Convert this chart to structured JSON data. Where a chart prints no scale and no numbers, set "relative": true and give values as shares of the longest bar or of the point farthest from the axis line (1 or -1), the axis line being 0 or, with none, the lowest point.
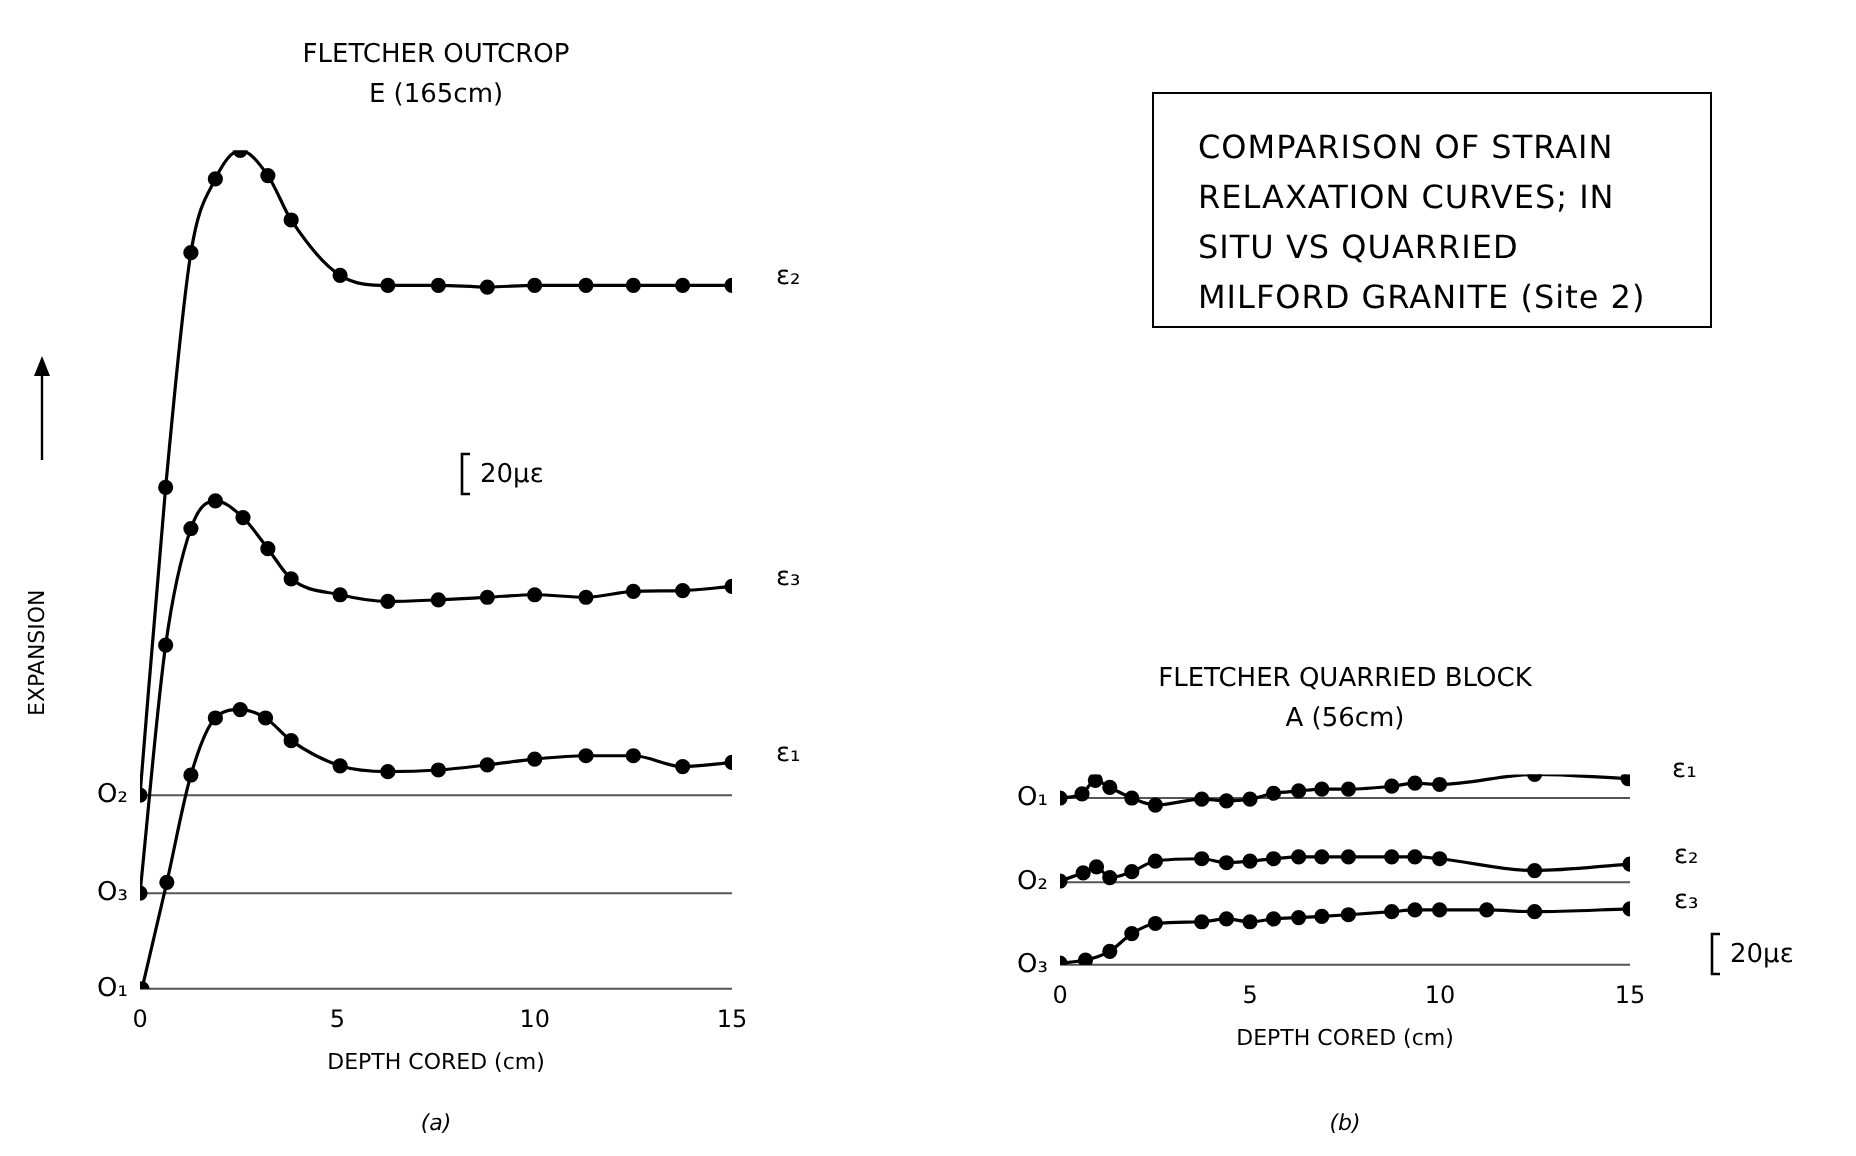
{
  "chart_data": [
    {
      "type": "line",
      "title": "FLETCHER OUTCROP",
      "subtitle": "E (165cm)",
      "xlabel": "DEPTH CORED (cm)",
      "ylabel": "EXPANSION",
      "relative": true,
      "xlim": [
        0,
        15
      ],
      "xticks": [
        0,
        5,
        10,
        15
      ],
      "grid": false,
      "legend": false,
      "marker": "circle",
      "line_style": "solid",
      "ref_lines": [
        {
          "axis": "y",
          "value": 0.231,
          "label": "O₂",
          "color": "#555555"
        },
        {
          "axis": "y",
          "value": 0.114,
          "label": "O₃",
          "color": "#555555"
        },
        {
          "axis": "y",
          "value": 0,
          "label": "O₁",
          "color": "#555555"
        }
      ],
      "annotations": [
        "20με",
        "(a)"
      ],
      "series": [
        {
          "name": "ε₂",
          "color": "#000000",
          "x": [
            0,
            0.65,
            1.29,
            1.91,
            2.54,
            3.24,
            3.83,
            5.07,
            6.28,
            7.56,
            8.8,
            10.0,
            11.3,
            12.5,
            13.75,
            15
          ],
          "values": [
            0.231,
            0.598,
            0.878,
            0.966,
            1.0,
            0.97,
            0.917,
            0.851,
            0.839,
            0.839,
            0.837,
            0.839,
            0.839,
            0.839,
            0.839,
            0.839
          ]
        },
        {
          "name": "ε₃",
          "color": "#000000",
          "x": [
            0,
            0.65,
            1.29,
            1.91,
            2.61,
            3.24,
            3.83,
            5.07,
            6.28,
            7.56,
            8.8,
            10.0,
            11.3,
            12.5,
            13.75,
            15
          ],
          "values": [
            0.114,
            0.41,
            0.549,
            0.582,
            0.562,
            0.525,
            0.489,
            0.47,
            0.462,
            0.464,
            0.467,
            0.47,
            0.467,
            0.474,
            0.475,
            0.48
          ]
        },
        {
          "name": "ε₁",
          "color": "#000000",
          "x": [
            0.05,
            0.68,
            1.29,
            1.91,
            2.54,
            3.18,
            3.83,
            5.07,
            6.28,
            7.56,
            8.8,
            10.0,
            11.3,
            12.5,
            13.75,
            15
          ],
          "values": [
            0,
            0.127,
            0.255,
            0.323,
            0.333,
            0.323,
            0.296,
            0.266,
            0.259,
            0.261,
            0.267,
            0.274,
            0.278,
            0.278,
            0.265,
            0.27
          ]
        }
      ]
    },
    {
      "type": "other",
      "title": "COMPARISON OF STRAIN RELAXATION CURVES; IN SITU VS QUARRIED MILFORD GRANITE (Site 2)"
    },
    {
      "type": "line",
      "title": "FLETCHER QUARRIED BLOCK",
      "subtitle": "A (56cm)",
      "xlabel": "DEPTH CORED (cm)",
      "relative": true,
      "xlim": [
        0,
        15
      ],
      "xticks": [
        0,
        5,
        10,
        15
      ],
      "grid": false,
      "legend": false,
      "marker": "circle",
      "line_style": "solid",
      "ref_lines": [
        {
          "axis": "y",
          "value": 0.876,
          "label": "O₁",
          "color": "#555555"
        },
        {
          "axis": "y",
          "value": 0.433,
          "label": "O₂",
          "color": "#555555"
        },
        {
          "axis": "y",
          "value": 0,
          "label": "O₃",
          "color": "#555555"
        }
      ],
      "annotations": [
        "20με",
        "(b)"
      ],
      "series": [
        {
          "name": "ε₁",
          "color": "#000000",
          "x": [
            0,
            0.58,
            0.93,
            1.31,
            1.89,
            2.51,
            3.73,
            4.38,
            5.0,
            5.62,
            6.28,
            6.89,
            7.59,
            8.73,
            9.34,
            9.99,
            12.49,
            14.95
          ],
          "values": [
            0.876,
            0.898,
            0.969,
            0.932,
            0.876,
            0.839,
            0.87,
            0.861,
            0.87,
            0.901,
            0.913,
            0.923,
            0.923,
            0.938,
            0.954,
            0.947,
            1,
            0.978
          ]
        },
        {
          "name": "ε₂",
          "color": "#000000",
          "x": [
            0,
            0.61,
            0.96,
            1.31,
            1.89,
            2.51,
            3.73,
            4.38,
            5.0,
            5.62,
            6.28,
            6.89,
            7.59,
            8.73,
            9.34,
            9.99,
            12.49,
            15
          ],
          "values": [
            0.44,
            0.483,
            0.514,
            0.458,
            0.489,
            0.545,
            0.557,
            0.536,
            0.545,
            0.557,
            0.567,
            0.567,
            0.567,
            0.567,
            0.567,
            0.557,
            0.495,
            0.529
          ]
        },
        {
          "name": "ε₃",
          "color": "#000000",
          "x": [
            0,
            0.67,
            1.31,
            1.89,
            2.51,
            3.73,
            4.38,
            5.0,
            5.62,
            6.28,
            6.89,
            7.59,
            8.73,
            9.34,
            9.99,
            11.23,
            12.49,
            15
          ],
          "values": [
            0.009,
            0.025,
            0.071,
            0.164,
            0.217,
            0.226,
            0.241,
            0.226,
            0.241,
            0.248,
            0.254,
            0.263,
            0.279,
            0.288,
            0.288,
            0.288,
            0.279,
            0.294
          ]
        }
      ]
    }
  ]
}
